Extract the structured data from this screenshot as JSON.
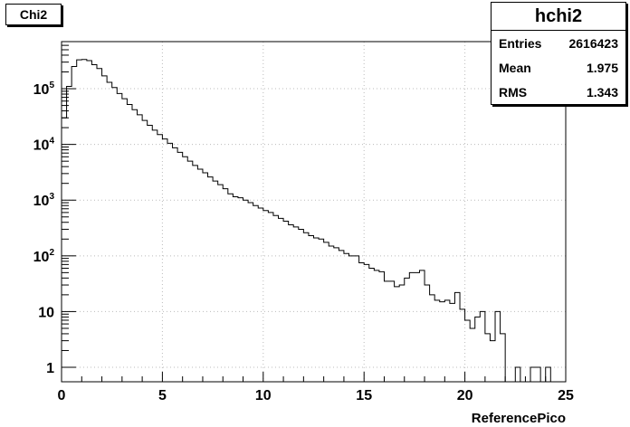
{
  "title": "Chi2",
  "stats": {
    "name": "hchi2",
    "entries_label": "Entries",
    "entries_value": "2616423",
    "mean_label": "Mean",
    "mean_value": "1.975",
    "rms_label": "RMS",
    "rms_value": "1.343"
  },
  "chart_data": {
    "type": "histogram",
    "title": "Chi2",
    "xlabel": "ReferencePico",
    "ylabel": "",
    "xlim": [
      0,
      25
    ],
    "ylim": [
      0.55,
      700000
    ],
    "yscale": "log",
    "grid": true,
    "x_ticks": [
      "0",
      "5",
      "10",
      "15",
      "20",
      "25"
    ],
    "y_ticks": [
      {
        "value": 1,
        "base": "1",
        "exp": ""
      },
      {
        "value": 10,
        "base": "10",
        "exp": ""
      },
      {
        "value": 100,
        "base": "10",
        "exp": "2"
      },
      {
        "value": 1000,
        "base": "10",
        "exp": "3"
      },
      {
        "value": 10000,
        "base": "10",
        "exp": "4"
      },
      {
        "value": 100000,
        "base": "10",
        "exp": "5"
      }
    ],
    "bin_width": 0.25,
    "counts": [
      30000,
      110000,
      250000,
      330000,
      335000,
      320000,
      270000,
      230000,
      170000,
      130000,
      105000,
      82000,
      66000,
      52000,
      42000,
      34000,
      27000,
      22000,
      18000,
      15000,
      12500,
      10500,
      8700,
      7200,
      6000,
      5000,
      4200,
      3600,
      3100,
      2600,
      2200,
      1900,
      1600,
      1300,
      1150,
      1100,
      1000,
      900,
      800,
      720,
      650,
      600,
      530,
      470,
      420,
      360,
      330,
      300,
      260,
      230,
      210,
      200,
      175,
      150,
      140,
      125,
      110,
      100,
      100,
      75,
      70,
      60,
      55,
      52,
      35,
      35,
      28,
      30,
      40,
      50,
      50,
      55,
      30,
      20,
      16,
      15,
      16,
      14,
      22,
      11,
      7,
      5,
      8,
      10,
      4,
      3,
      10,
      4,
      0,
      0,
      1,
      0,
      0,
      1,
      1,
      0,
      1,
      0,
      0,
      0,
      0
    ]
  }
}
